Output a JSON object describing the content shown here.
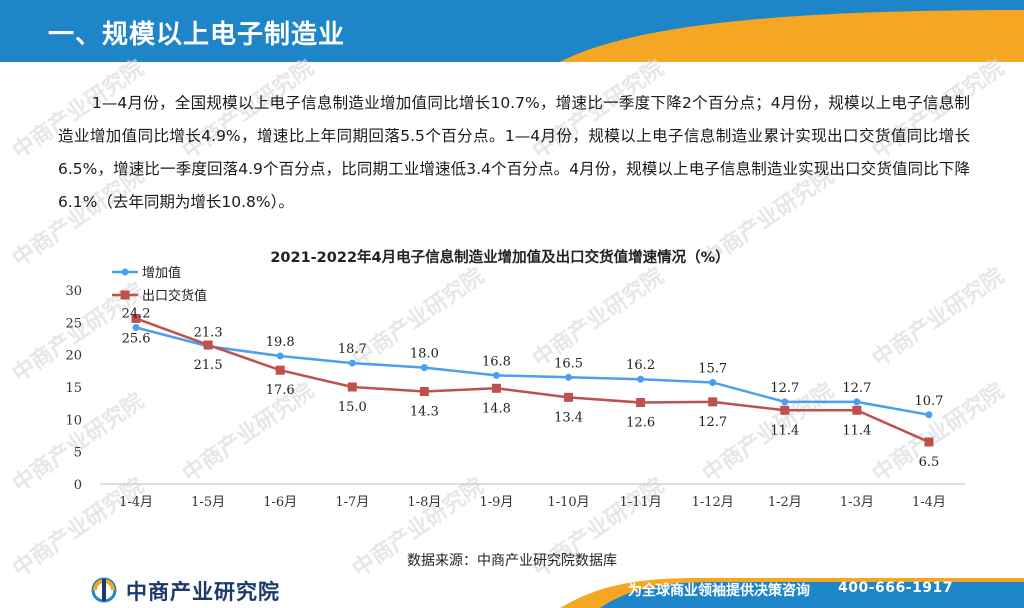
{
  "header": {
    "title": "一、规模以上电子制造业"
  },
  "paragraph": "1—4月份，全国规模以上电子信息制造业增加值同比增长10.7%，增速比一季度下降2个百分点；4月份，规模以上电子信息制造业增加值同比增长4.9%，增速比上年同期回落5.5个百分点。1—4月份，规模以上电子信息制造业累计实现出口交货值同比增长6.5%，增速比一季度回落4.9个百分点，比同期工业增速低3.4个百分点。4月份，规模以上电子信息制造业实现出口交货值同比下降6.1%（去年同期为增长10.8%）。",
  "chart_data": {
    "type": "line",
    "title": "2021-2022年4月电子信息制造业增加值及出口交货值增速情况（%）",
    "categories": [
      "1-4月",
      "1-5月",
      "1-6月",
      "1-7月",
      "1-8月",
      "1-9月",
      "1-10月",
      "1-11月",
      "1-12月",
      "1-2月",
      "1-3月",
      "1-4月"
    ],
    "series": [
      {
        "name": "增加值",
        "color": "#4a9ff0",
        "marker": "circle",
        "values": [
          24.2,
          21.3,
          19.8,
          18.7,
          18.0,
          16.8,
          16.5,
          16.2,
          15.7,
          12.7,
          12.7,
          10.7
        ]
      },
      {
        "name": "出口交货值",
        "color": "#c0504d",
        "marker": "square",
        "values": [
          25.6,
          21.5,
          17.6,
          15.0,
          14.3,
          14.8,
          13.4,
          12.6,
          12.7,
          11.4,
          11.4,
          6.5
        ]
      }
    ],
    "ylim": [
      0,
      30
    ],
    "yticks": [
      0,
      5,
      10,
      15,
      20,
      25,
      30
    ],
    "legend": "top-left"
  },
  "source": "数据来源：中商产业研究院数据库",
  "footer": {
    "logo": "中商产业研究院",
    "slogan": "为全球商业领袖提供决策咨询",
    "phone": "400-666-1917"
  },
  "watermark": "中商产业研究院",
  "colors": {
    "header_blue": "#1e86c8",
    "header_orange": "#f5a623",
    "footer_blue": "#1e86c8"
  }
}
